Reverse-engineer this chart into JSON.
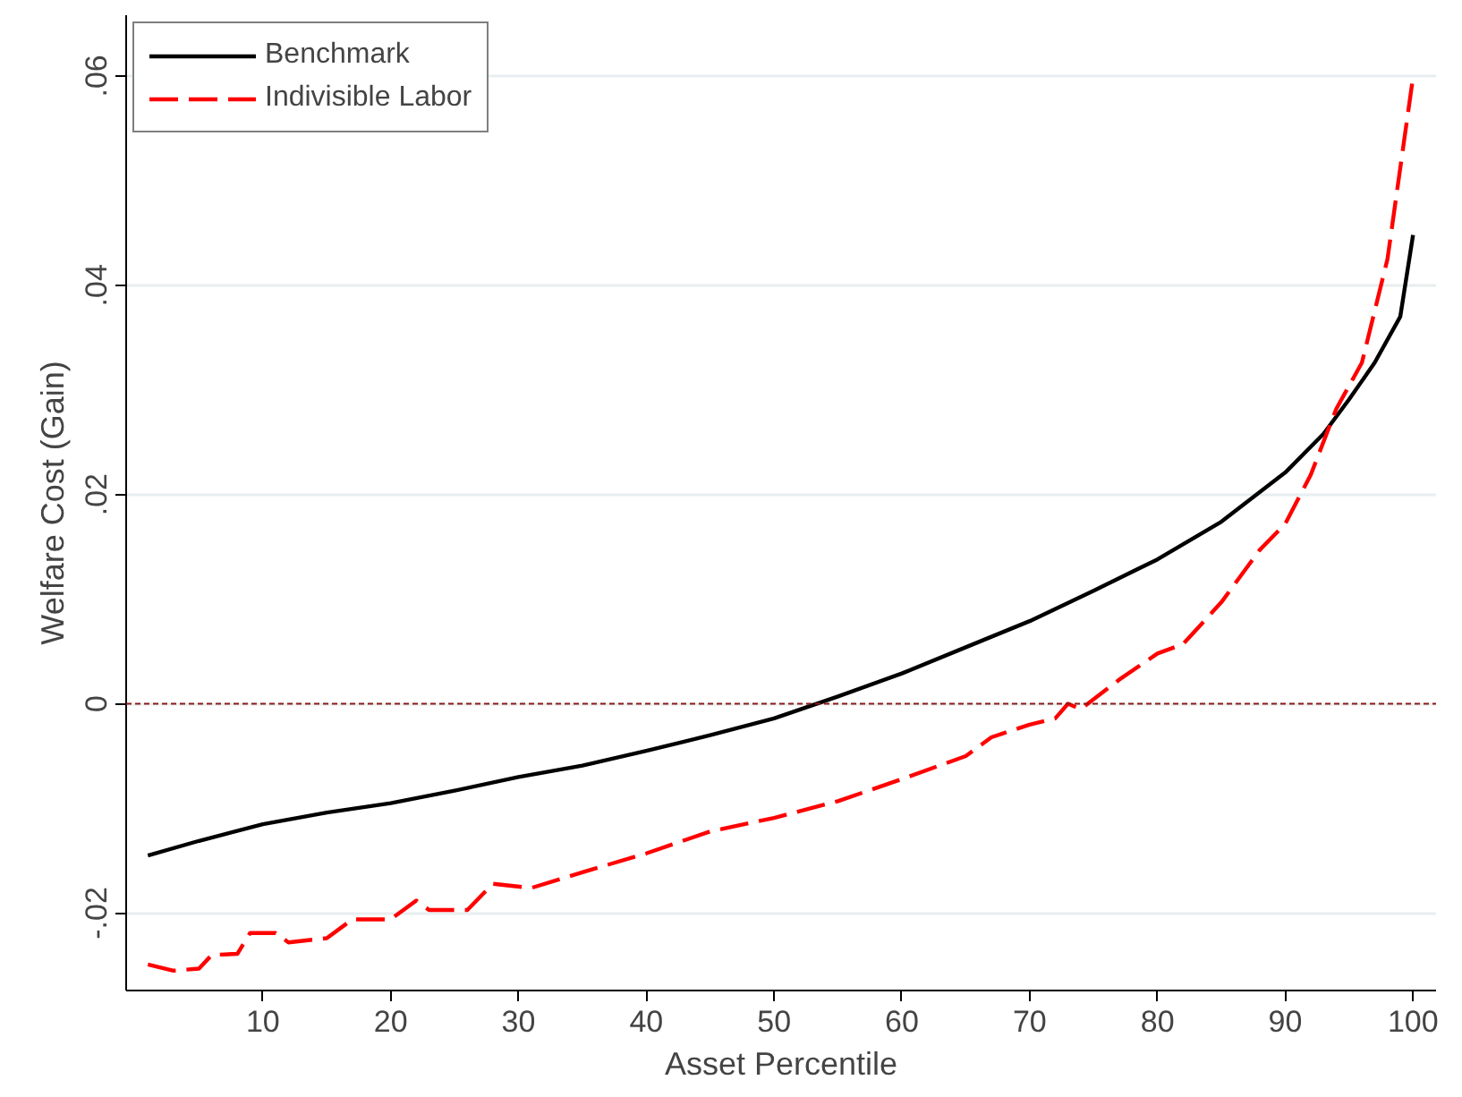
{
  "chart_data": {
    "type": "line",
    "xlabel": "Asset Percentile",
    "ylabel": "Welfare Cost (Gain)",
    "xlim": [
      -0.7,
      101.8
    ],
    "ylim": [
      -0.0274,
      0.0658
    ],
    "xticks": [
      10,
      20,
      30,
      40,
      50,
      60,
      70,
      80,
      90,
      100
    ],
    "yticks": [
      {
        "value": -0.02,
        "label": "-.02"
      },
      {
        "value": 0,
        "label": "0"
      },
      {
        "value": 0.02,
        "label": ".02"
      },
      {
        "value": 0.04,
        "label": ".04"
      },
      {
        "value": 0.06,
        "label": ".06"
      }
    ],
    "grid": "y",
    "legend": "top left",
    "ref_lines": [
      {
        "axis": "y",
        "value": 0,
        "color": "#8b1a1a",
        "line_style": "dashed"
      }
    ],
    "series": [
      {
        "name": "Benchmark",
        "color": "#000000",
        "line_style": "solid",
        "x": [
          1,
          5,
          10,
          15,
          20,
          25,
          30,
          35,
          40,
          45,
          50,
          55,
          60,
          65,
          70,
          75,
          80,
          85,
          90,
          93,
          95,
          97,
          99,
          100
        ],
        "values": [
          -0.0145,
          -0.0131,
          -0.0115,
          -0.0104,
          -0.0095,
          -0.0083,
          -0.007,
          -0.0059,
          -0.0045,
          -0.003,
          -0.0014,
          0.0007,
          0.0029,
          0.0054,
          0.0079,
          0.0108,
          0.0138,
          0.0174,
          0.0221,
          0.0258,
          0.0291,
          0.0326,
          0.037,
          0.0448
        ]
      },
      {
        "name": "Indivisible Labor",
        "color": "#ff0000",
        "line_style": "dashed",
        "x": [
          1,
          3,
          5,
          6,
          8,
          9,
          11,
          12,
          15,
          17,
          20,
          22,
          23,
          26,
          28,
          31,
          35,
          40,
          45,
          50,
          55,
          60,
          65,
          67,
          70,
          72,
          73,
          74,
          77,
          80,
          82,
          85,
          88,
          90,
          92,
          94,
          96,
          98,
          100
        ],
        "values": [
          -0.0249,
          -0.0255,
          -0.0253,
          -0.024,
          -0.0239,
          -0.0219,
          -0.0219,
          -0.0228,
          -0.0224,
          -0.0206,
          -0.0206,
          -0.0188,
          -0.0197,
          -0.0197,
          -0.0172,
          -0.0176,
          -0.0161,
          -0.0143,
          -0.0122,
          -0.0109,
          -0.0093,
          -0.0072,
          -0.005,
          -0.0032,
          -0.002,
          -0.0014,
          0.0,
          -0.0005,
          0.0023,
          0.0048,
          0.0057,
          0.0097,
          0.0147,
          0.0172,
          0.0219,
          0.0282,
          0.0326,
          0.0425,
          0.0599
        ]
      }
    ]
  }
}
